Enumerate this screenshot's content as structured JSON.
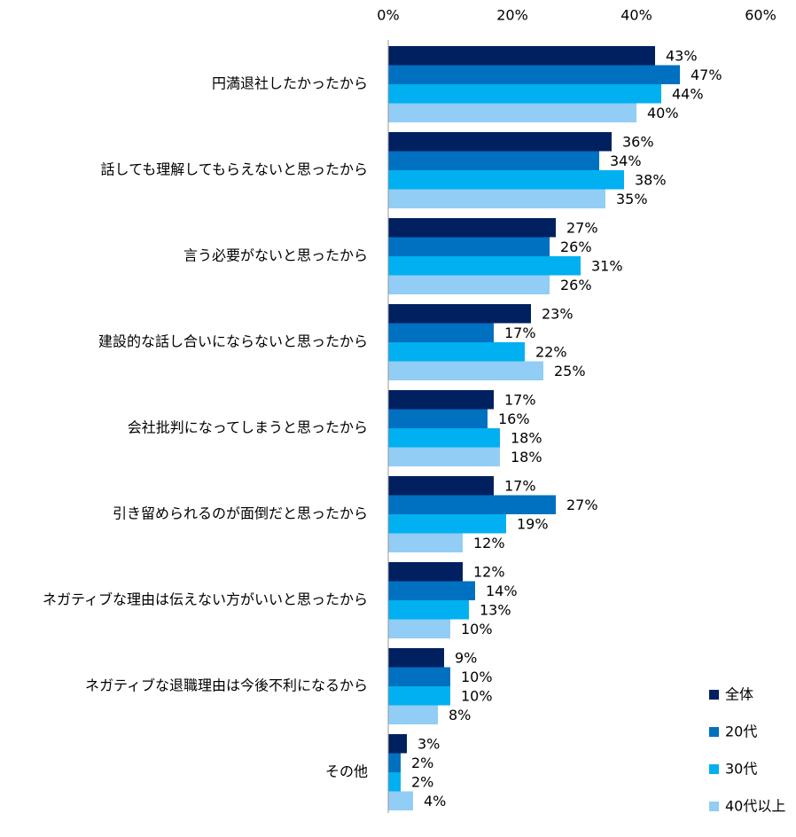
{
  "chart_data": {
    "type": "barh",
    "categories": [
      "円満退社したかったから",
      "話しても理解してもらえないと思ったから",
      "言う必要がないと思ったから",
      "建設的な話し合いにならないと思ったから",
      "会社批判になってしまうと思ったから",
      "引き留められるのが面倒だと思ったから",
      "ネガティブな理由は伝えない方がいいと思ったから",
      "ネガティブな退職理由は今後不利になるから",
      "その他"
    ],
    "series": [
      {
        "name": "全体",
        "color": "#002060",
        "values": [
          43,
          36,
          27,
          23,
          17,
          17,
          12,
          9,
          3
        ],
        "value_labels": [
          "43%",
          "36%",
          "27%",
          "23%",
          "17%",
          "17%",
          "12%",
          "9%",
          "3%"
        ]
      },
      {
        "name": "20代",
        "color": "#0070c0",
        "values": [
          47,
          34,
          26,
          17,
          16,
          27,
          14,
          10,
          2
        ],
        "value_labels": [
          "47%",
          "34%",
          "26%",
          "17%",
          "16%",
          "27%",
          "14%",
          "10%",
          "2%"
        ]
      },
      {
        "name": "30代",
        "color": "#00b0f0",
        "values": [
          44,
          38,
          31,
          22,
          18,
          19,
          13,
          10,
          2
        ],
        "value_labels": [
          "44%",
          "38%",
          "31%",
          "22%",
          "18%",
          "19%",
          "13%",
          "10%",
          "2%"
        ]
      },
      {
        "name": "40代以上",
        "color": "#92cdf5",
        "values": [
          40,
          35,
          26,
          25,
          18,
          12,
          10,
          8,
          4
        ],
        "value_labels": [
          "40%",
          "35%",
          "26%",
          "25%",
          "18%",
          "12%",
          "10%",
          "8%",
          "4%"
        ]
      }
    ],
    "xlim": [
      0,
      60
    ],
    "xticks": [
      {
        "value": 0,
        "label": "0%"
      },
      {
        "value": 20,
        "label": "20%"
      },
      {
        "value": 40,
        "label": "40%"
      },
      {
        "value": 60,
        "label": "60%"
      }
    ],
    "legend": "lower right"
  }
}
